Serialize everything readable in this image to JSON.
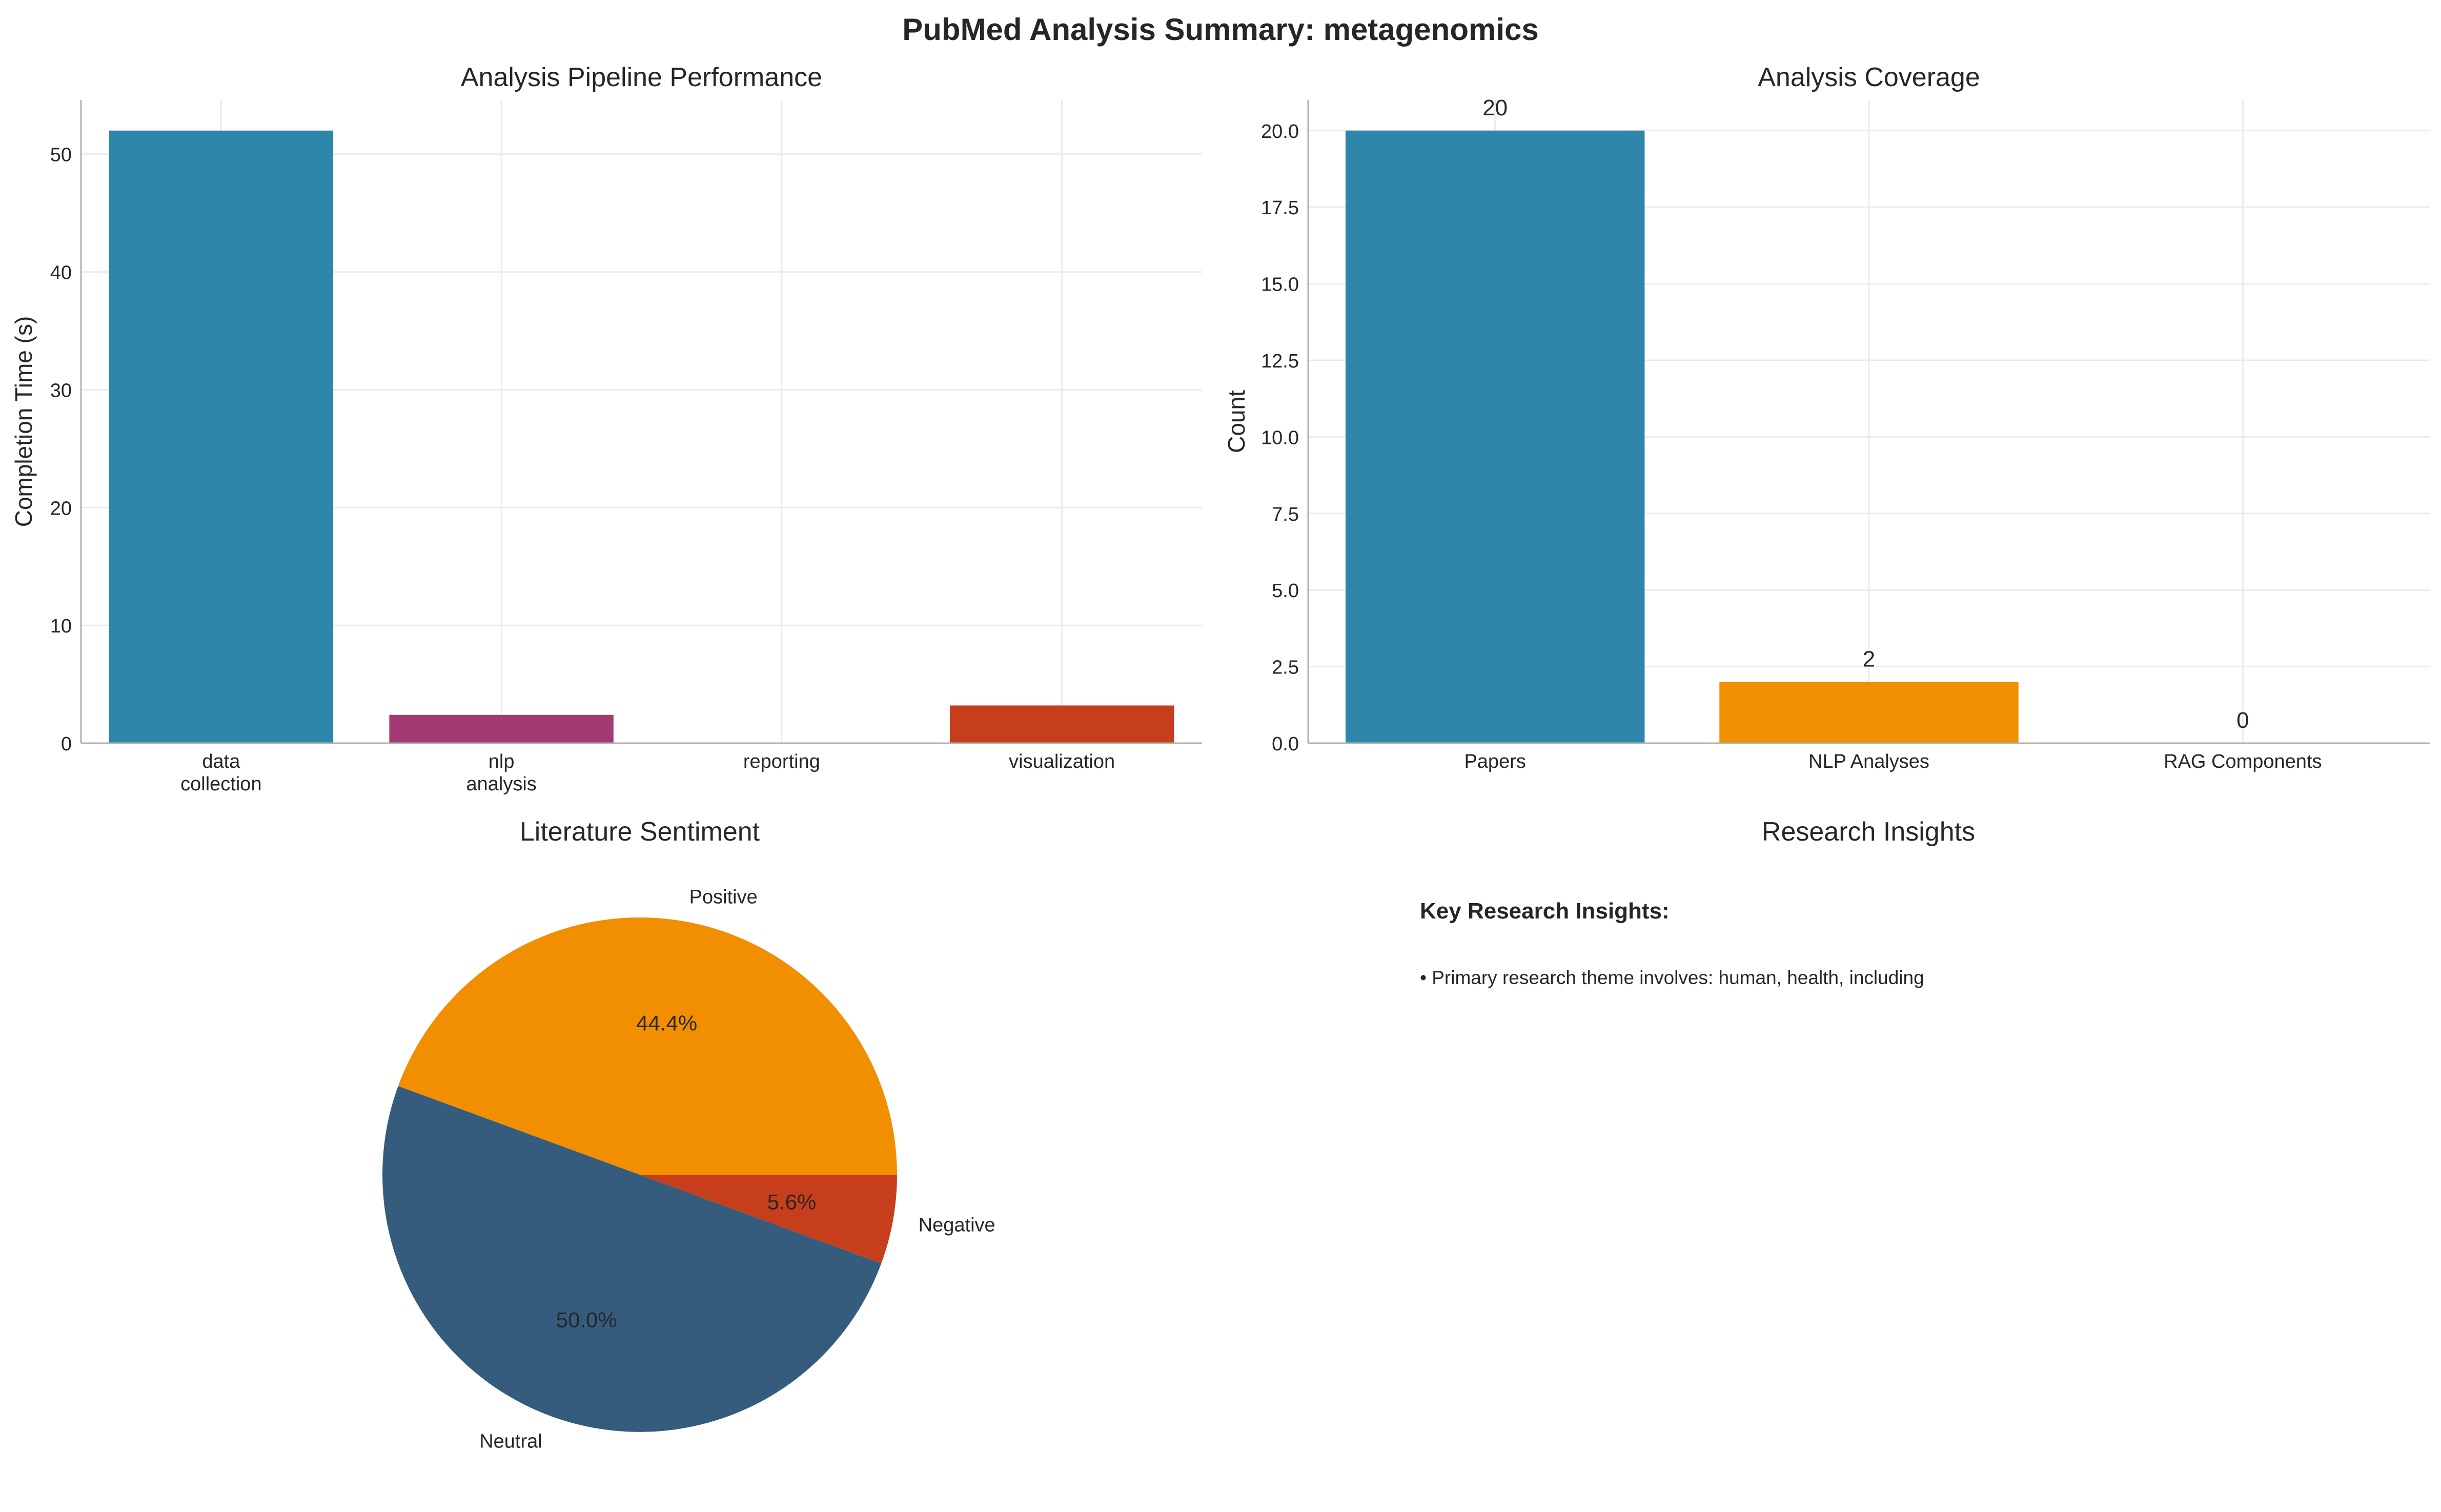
{
  "figure": {
    "title": "PubMed Analysis Summary: metagenomics"
  },
  "chart_data": [
    {
      "type": "bar",
      "title": "Analysis Pipeline Performance",
      "xlabel": "",
      "ylabel": "Completion Time (s)",
      "categories": [
        [
          "data",
          "collection"
        ],
        [
          "nlp",
          "analysis"
        ],
        [
          "reporting"
        ],
        [
          "visualization"
        ]
      ],
      "values": [
        52.0,
        2.4,
        0.0,
        3.2
      ],
      "colors": [
        "#2E86AB",
        "#A23B72",
        "#F18F01",
        "#C73E1D"
      ],
      "ylim": [
        0,
        54.6
      ],
      "yticks": [
        0,
        10,
        20,
        30,
        40,
        50
      ],
      "ytick_labels": [
        "0",
        "10",
        "20",
        "30",
        "40",
        "50"
      ],
      "grid": true,
      "data_labels": []
    },
    {
      "type": "bar",
      "title": "Analysis Coverage",
      "xlabel": "",
      "ylabel": "Count",
      "categories": [
        [
          "Papers"
        ],
        [
          "NLP Analyses"
        ],
        [
          "RAG Components"
        ]
      ],
      "values": [
        20,
        2,
        0
      ],
      "colors": [
        "#2E86AB",
        "#F18F01",
        "#C73E1D"
      ],
      "ylim": [
        0,
        21
      ],
      "yticks": [
        0,
        2.5,
        5,
        7.5,
        10,
        12.5,
        15,
        17.5,
        20
      ],
      "ytick_labels": [
        "0.0",
        "2.5",
        "5.0",
        "7.5",
        "10.0",
        "12.5",
        "15.0",
        "17.5",
        "20.0"
      ],
      "grid": true,
      "data_labels": [
        "20",
        "2",
        "0"
      ]
    },
    {
      "type": "pie",
      "title": "Literature Sentiment",
      "slices": [
        {
          "label": "Positive",
          "value": 44.4,
          "pct_label": "44.4%",
          "color": "#F18F01"
        },
        {
          "label": "Neutral",
          "value": 50.0,
          "pct_label": "50.0%",
          "color": "#355C7D"
        },
        {
          "label": "Negative",
          "value": 5.6,
          "pct_label": "5.6%",
          "color": "#C73E1D"
        }
      ],
      "start_angle_deg": 0,
      "direction": "counterclockwise"
    }
  ],
  "insights": {
    "title": "Research Insights",
    "heading": "Key Research Insights:",
    "items": [
      "• Primary research theme involves: human, health, including"
    ]
  }
}
